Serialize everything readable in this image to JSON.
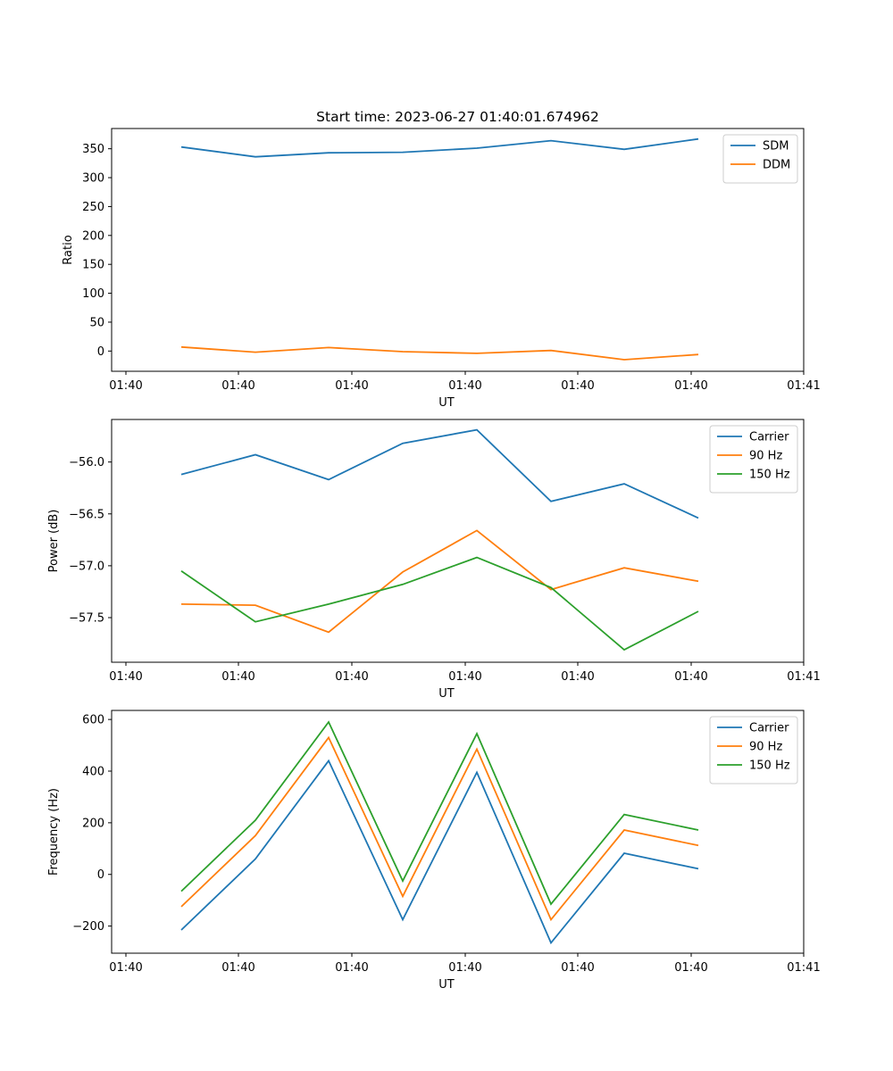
{
  "title": "Start time: 2023-06-27 01:40:01.674962",
  "chart_data": [
    {
      "type": "line",
      "title": "Start time: 2023-06-27 01:40:01.674962",
      "xlabel": "UT",
      "ylabel": "Ratio",
      "x_tick_labels": [
        "01:40",
        "01:40",
        "01:40",
        "01:40",
        "01:40",
        "01:40",
        "01:40",
        "01:41"
      ],
      "y_ticks": [
        0,
        50,
        100,
        150,
        200,
        250,
        300,
        350
      ],
      "y_tick_labels": [
        "0",
        "50",
        "100",
        "150",
        "200",
        "250",
        "300",
        "350"
      ],
      "ylim": [
        -35,
        385
      ],
      "legend": "top-right",
      "grid": false,
      "series": [
        {
          "name": "SDM",
          "color": "#1f77b4",
          "values": [
            353,
            336,
            343,
            344,
            351,
            364,
            349,
            367
          ]
        },
        {
          "name": "DDM",
          "color": "#ff7f0e",
          "values": [
            7,
            -2,
            6,
            -1,
            -4,
            1,
            -15,
            -6
          ]
        }
      ]
    },
    {
      "type": "line",
      "xlabel": "UT",
      "ylabel": "Power (dB)",
      "x_tick_labels": [
        "01:40",
        "01:40",
        "01:40",
        "01:40",
        "01:40",
        "01:40",
        "01:40",
        "01:41"
      ],
      "y_ticks": [
        -57.5,
        -57.0,
        -56.5,
        -56.0
      ],
      "y_tick_labels": [
        "−57.5",
        "−57.0",
        "−56.5",
        "−56.0"
      ],
      "ylim": [
        -57.93,
        -55.59
      ],
      "legend": "top-right",
      "grid": false,
      "series": [
        {
          "name": "Carrier",
          "color": "#1f77b4",
          "values": [
            -56.12,
            -55.93,
            -56.17,
            -55.82,
            -55.69,
            -56.38,
            -56.21,
            -56.54
          ]
        },
        {
          "name": "90 Hz",
          "color": "#ff7f0e",
          "values": [
            -57.37,
            -57.38,
            -57.64,
            -57.06,
            -56.66,
            -57.23,
            -57.02,
            -57.15
          ]
        },
        {
          "name": "150 Hz",
          "color": "#2ca02c",
          "values": [
            -57.05,
            -57.54,
            -57.37,
            -57.18,
            -56.92,
            -57.21,
            -57.81,
            -57.44
          ]
        }
      ]
    },
    {
      "type": "line",
      "xlabel": "UT",
      "ylabel": "Frequency (Hz)",
      "x_tick_labels": [
        "01:40",
        "01:40",
        "01:40",
        "01:40",
        "01:40",
        "01:40",
        "01:40",
        "01:41"
      ],
      "y_ticks": [
        -200,
        0,
        200,
        400,
        600
      ],
      "y_tick_labels": [
        "−200",
        "0",
        "200",
        "400",
        "600"
      ],
      "ylim": [
        -305,
        635
      ],
      "legend": "top-right",
      "grid": false,
      "series": [
        {
          "name": "Carrier",
          "color": "#1f77b4",
          "values": [
            -215,
            60,
            440,
            -175,
            395,
            -265,
            82,
            22
          ]
        },
        {
          "name": "90 Hz",
          "color": "#ff7f0e",
          "values": [
            -125,
            150,
            530,
            -85,
            485,
            -175,
            172,
            112
          ]
        },
        {
          "name": "150 Hz",
          "color": "#2ca02c",
          "values": [
            -65,
            210,
            590,
            -25,
            545,
            -115,
            232,
            172
          ]
        }
      ]
    }
  ]
}
